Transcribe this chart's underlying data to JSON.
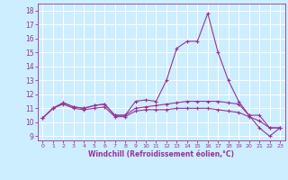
{
  "x": [
    0,
    1,
    2,
    3,
    4,
    5,
    6,
    7,
    8,
    9,
    10,
    11,
    12,
    13,
    14,
    15,
    16,
    17,
    18,
    19,
    20,
    21,
    22,
    23
  ],
  "line1": [
    10.3,
    11.0,
    11.4,
    11.1,
    11.0,
    11.2,
    11.3,
    10.5,
    10.5,
    11.5,
    11.6,
    11.5,
    13.0,
    15.3,
    15.8,
    15.8,
    17.8,
    15.0,
    13.0,
    11.5,
    10.5,
    9.6,
    9.0,
    9.6
  ],
  "line2": [
    10.3,
    11.0,
    11.4,
    11.1,
    11.0,
    11.2,
    11.3,
    10.5,
    10.5,
    11.0,
    11.1,
    11.2,
    11.3,
    11.4,
    11.5,
    11.5,
    11.5,
    11.5,
    11.4,
    11.3,
    10.5,
    10.5,
    9.6,
    9.6
  ],
  "line3": [
    10.3,
    11.0,
    11.3,
    11.0,
    10.9,
    11.0,
    11.1,
    10.4,
    10.4,
    10.8,
    10.9,
    10.9,
    10.9,
    11.0,
    11.0,
    11.0,
    11.0,
    10.9,
    10.8,
    10.7,
    10.4,
    10.1,
    9.6,
    9.6
  ],
  "line_color": "#993399",
  "bg_color": "#cceeff",
  "grid_color": "#ffffff",
  "xlabel": "Windchill (Refroidissement éolien,°C)",
  "ylabel_ticks": [
    9,
    10,
    11,
    12,
    13,
    14,
    15,
    16,
    17,
    18
  ],
  "xlabel_ticks": [
    0,
    1,
    2,
    3,
    4,
    5,
    6,
    7,
    8,
    9,
    10,
    11,
    12,
    13,
    14,
    15,
    16,
    17,
    18,
    19,
    20,
    21,
    22,
    23
  ],
  "xlim": [
    -0.5,
    23.5
  ],
  "ylim": [
    8.7,
    18.5
  ]
}
